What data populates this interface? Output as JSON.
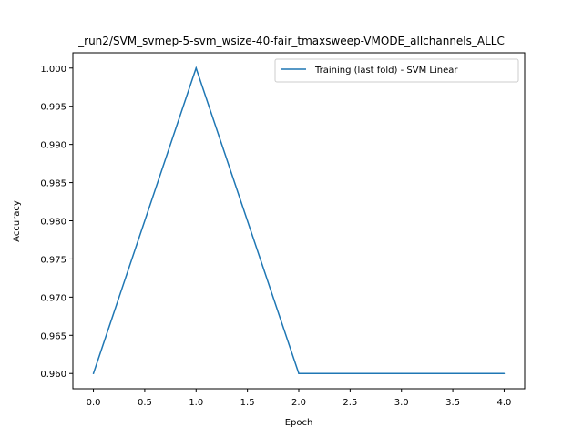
{
  "chart_data": {
    "type": "line",
    "title": "_run2/SVM_svmep-5-svm_wsize-40-fair_tmaxsweep-VMODE_allchannels_ALLC",
    "xlabel": "Epoch",
    "ylabel": "Accuracy",
    "x": [
      0,
      1,
      2,
      3,
      4
    ],
    "series": [
      {
        "name": "Training (last fold) - SVM Linear",
        "values": [
          0.96,
          1.0,
          0.96,
          0.96,
          0.96
        ],
        "color": "#1f77b4"
      }
    ],
    "xlim": [
      -0.2,
      4.2
    ],
    "ylim": [
      0.958,
      1.002
    ],
    "xticks": [
      "0.0",
      "0.5",
      "1.0",
      "1.5",
      "2.0",
      "2.5",
      "3.0",
      "3.5",
      "4.0"
    ],
    "xtick_values": [
      0,
      0.5,
      1,
      1.5,
      2,
      2.5,
      3,
      3.5,
      4
    ],
    "yticks": [
      "0.960",
      "0.965",
      "0.970",
      "0.975",
      "0.980",
      "0.985",
      "0.990",
      "0.995",
      "1.000"
    ],
    "ytick_values": [
      0.96,
      0.965,
      0.97,
      0.975,
      0.98,
      0.985,
      0.99,
      0.995,
      1.0
    ],
    "grid": false,
    "legend_position": "top-right"
  }
}
